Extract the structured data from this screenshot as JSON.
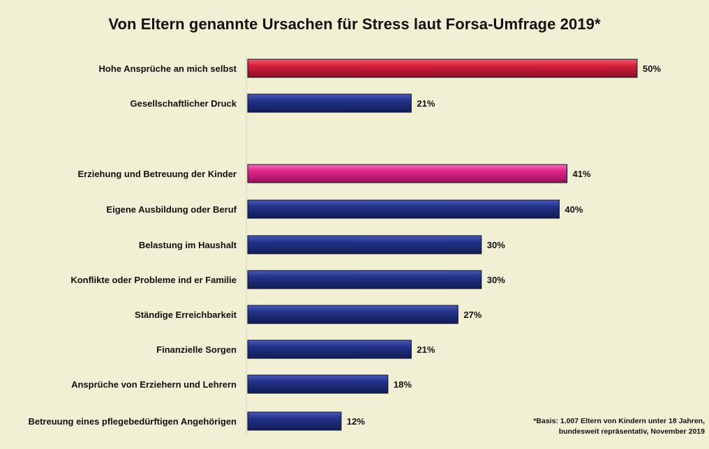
{
  "colors": {
    "background": "#f2f0d4",
    "navy": "#1f2f7a",
    "red": "#d8203c",
    "magenta": "#e0258a"
  },
  "chart_data": {
    "type": "bar",
    "orientation": "horizontal",
    "title": "Von Eltern genannte Ursachen für Stress laut Forsa-Umfrage 2019*",
    "unit": "%",
    "categories": [
      "Hohe Ansprüche an mich selbst",
      "Gesellschaftlicher Druck",
      "Erziehung und Betreuung der Kinder",
      "Eigene Ausbildung oder Beruf",
      "Belastung im Haushalt",
      "Konflikte oder Probleme ind er Familie",
      "Ständige Erreichbarkeit",
      "Finanzielle Sorgen",
      "Ansprüche von Erziehern und Lehrern",
      "Betreuung eines pflegebedürftigen Angehörigen"
    ],
    "values": [
      50,
      21,
      41,
      40,
      30,
      30,
      27,
      21,
      18,
      12
    ],
    "value_labels": [
      "50%",
      "21%",
      "41%",
      "40%",
      "30%",
      "30%",
      "27%",
      "21%",
      "18%",
      "12%"
    ],
    "bar_colors": [
      "#d8203c",
      "#1f2f7a",
      "#e0258a",
      "#1f2f7a",
      "#1f2f7a",
      "#1f2f7a",
      "#1f2f7a",
      "#1f2f7a",
      "#1f2f7a",
      "#1f2f7a"
    ],
    "xlim": [
      0,
      50
    ],
    "grid": false,
    "legend": "none"
  },
  "footnote": {
    "line1": "*Basis: 1.007 Eltern von Kindern unter 18 Jahren,",
    "line2": "bundesweit repräsentativ, November 2019"
  }
}
